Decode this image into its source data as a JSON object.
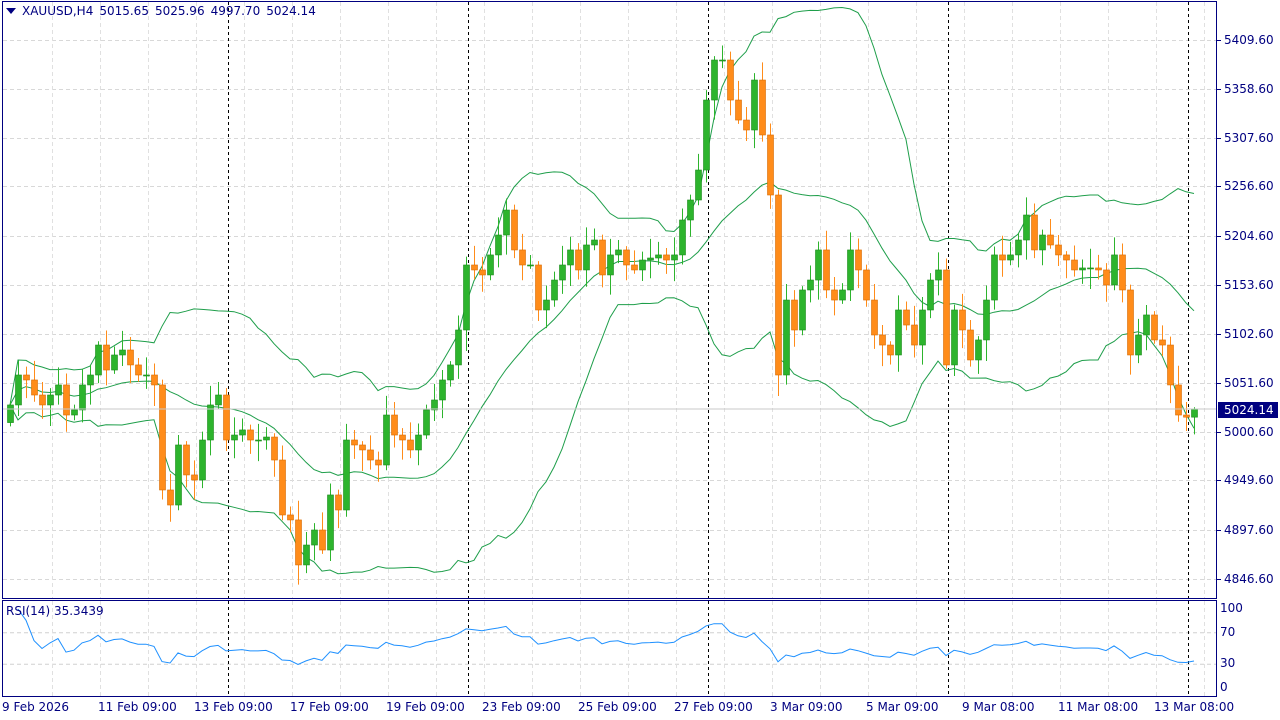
{
  "header": {
    "symbol_tf": "XAUUSD,H4",
    "open": "5015.65",
    "high": "5025.96",
    "low": "4997.70",
    "close": "5024.14"
  },
  "last_price": "5024.14",
  "rsi": {
    "label": "RSI(14)",
    "value": "35.3439",
    "levels": [
      "100",
      "70",
      "30",
      "0"
    ]
  },
  "price_axis": [
    "5409.60",
    "5358.60",
    "5307.60",
    "5256.60",
    "5204.60",
    "5153.60",
    "5102.60",
    "5051.60",
    "5000.60",
    "4949.60",
    "4897.60",
    "4846.60"
  ],
  "time_axis": [
    "9 Feb 2026",
    "11 Feb 09:00",
    "13 Feb 09:00",
    "17 Feb 09:00",
    "19 Feb 09:00",
    "23 Feb 09:00",
    "25 Feb 09:00",
    "27 Feb 09:00",
    "3 Mar 09:00",
    "5 Mar 09:00",
    "9 Mar 08:00",
    "11 Mar 08:00",
    "13 Mar 08:00"
  ],
  "colors": {
    "bull": "#2db42d",
    "bear": "#ff8c1a",
    "bands": "#1e9e4a",
    "rsi": "#1e90ff",
    "axis": "#000080"
  },
  "chart_data": {
    "type": "candlestick",
    "price_range": [
      4830,
      5450
    ],
    "first_open": 5010,
    "closes": [
      5028.4,
      5059.7,
      5054.5,
      5038.8,
      5028.4,
      5038.8,
      5049.3,
      5017.9,
      5023.2,
      5049.3,
      5059.7,
      5091,
      5064.9,
      5080.6,
      5085.8,
      5070.2,
      5059.7,
      5059.7,
      5049.3,
      4939.6,
      4923.9,
      4986.6,
      4955.3,
      4950,
      4991.8,
      5028.4,
      5038.8,
      4991.8,
      4997,
      5002.3,
      4991.8,
      4991.8,
      4994.9,
      4970.9,
      4913.5,
      4908.3,
      4861.3,
      4882.1,
      4897.8,
      4876.9,
      4934.4,
      4918.7,
      4991.8,
      4986.6,
      4981.4,
      4970.9,
      4965.7,
      5017.9,
      4997,
      4991.8,
      4981.4,
      4997,
      5023.2,
      5033.6,
      5054.5,
      5070.2,
      5106.7,
      5174.6,
      5169.4,
      5164.2,
      5185.1,
      5205.9,
      5232,
      5190.3,
      5174.6,
      5174.6,
      5127.6,
      5138,
      5158.9,
      5174.6,
      5190.3,
      5169.4,
      5195.5,
      5200.7,
      5164.2,
      5185.1,
      5190.3,
      5174.6,
      5169.4,
      5179.8,
      5181.9,
      5185.1,
      5179.8,
      5185.1,
      5221.6,
      5242.5,
      5273.8,
      5346.9,
      5388.7,
      5388.7,
      5346.9,
      5326,
      5315.6,
      5367.8,
      5310.4,
      5247.7,
      5059.7,
      5138,
      5106.7,
      5148.5,
      5158.9,
      5190.3,
      5148.5,
      5138,
      5148.5,
      5190.3,
      5169.4,
      5138,
      5101.5,
      5091,
      5080.6,
      5127.6,
      5111.9,
      5091,
      5127.6,
      5158.9,
      5169.4,
      5070.2,
      5127.6,
      5106.7,
      5075.4,
      5096.3,
      5138,
      5185.1,
      5179.8,
      5185.1,
      5200.7,
      5226.8,
      5190.3,
      5205.9,
      5195.5,
      5185.1,
      5179.8,
      5169.4,
      5171.5,
      5171.5,
      5169.4,
      5153.7,
      5185.1,
      5148.5,
      5080.6,
      5101.5,
      5122.4,
      5096.3,
      5091,
      5049.3,
      5017.9,
      5015.65,
      5024.14
    ],
    "last_candle": {
      "open": 5015.65,
      "high": 5025.96,
      "low": 4997.7,
      "close": 5024.14
    },
    "indicators": [
      "Bollinger Bands(20,2)",
      "RSI(14)"
    ],
    "rsi_levels": [
      70,
      30
    ]
  }
}
